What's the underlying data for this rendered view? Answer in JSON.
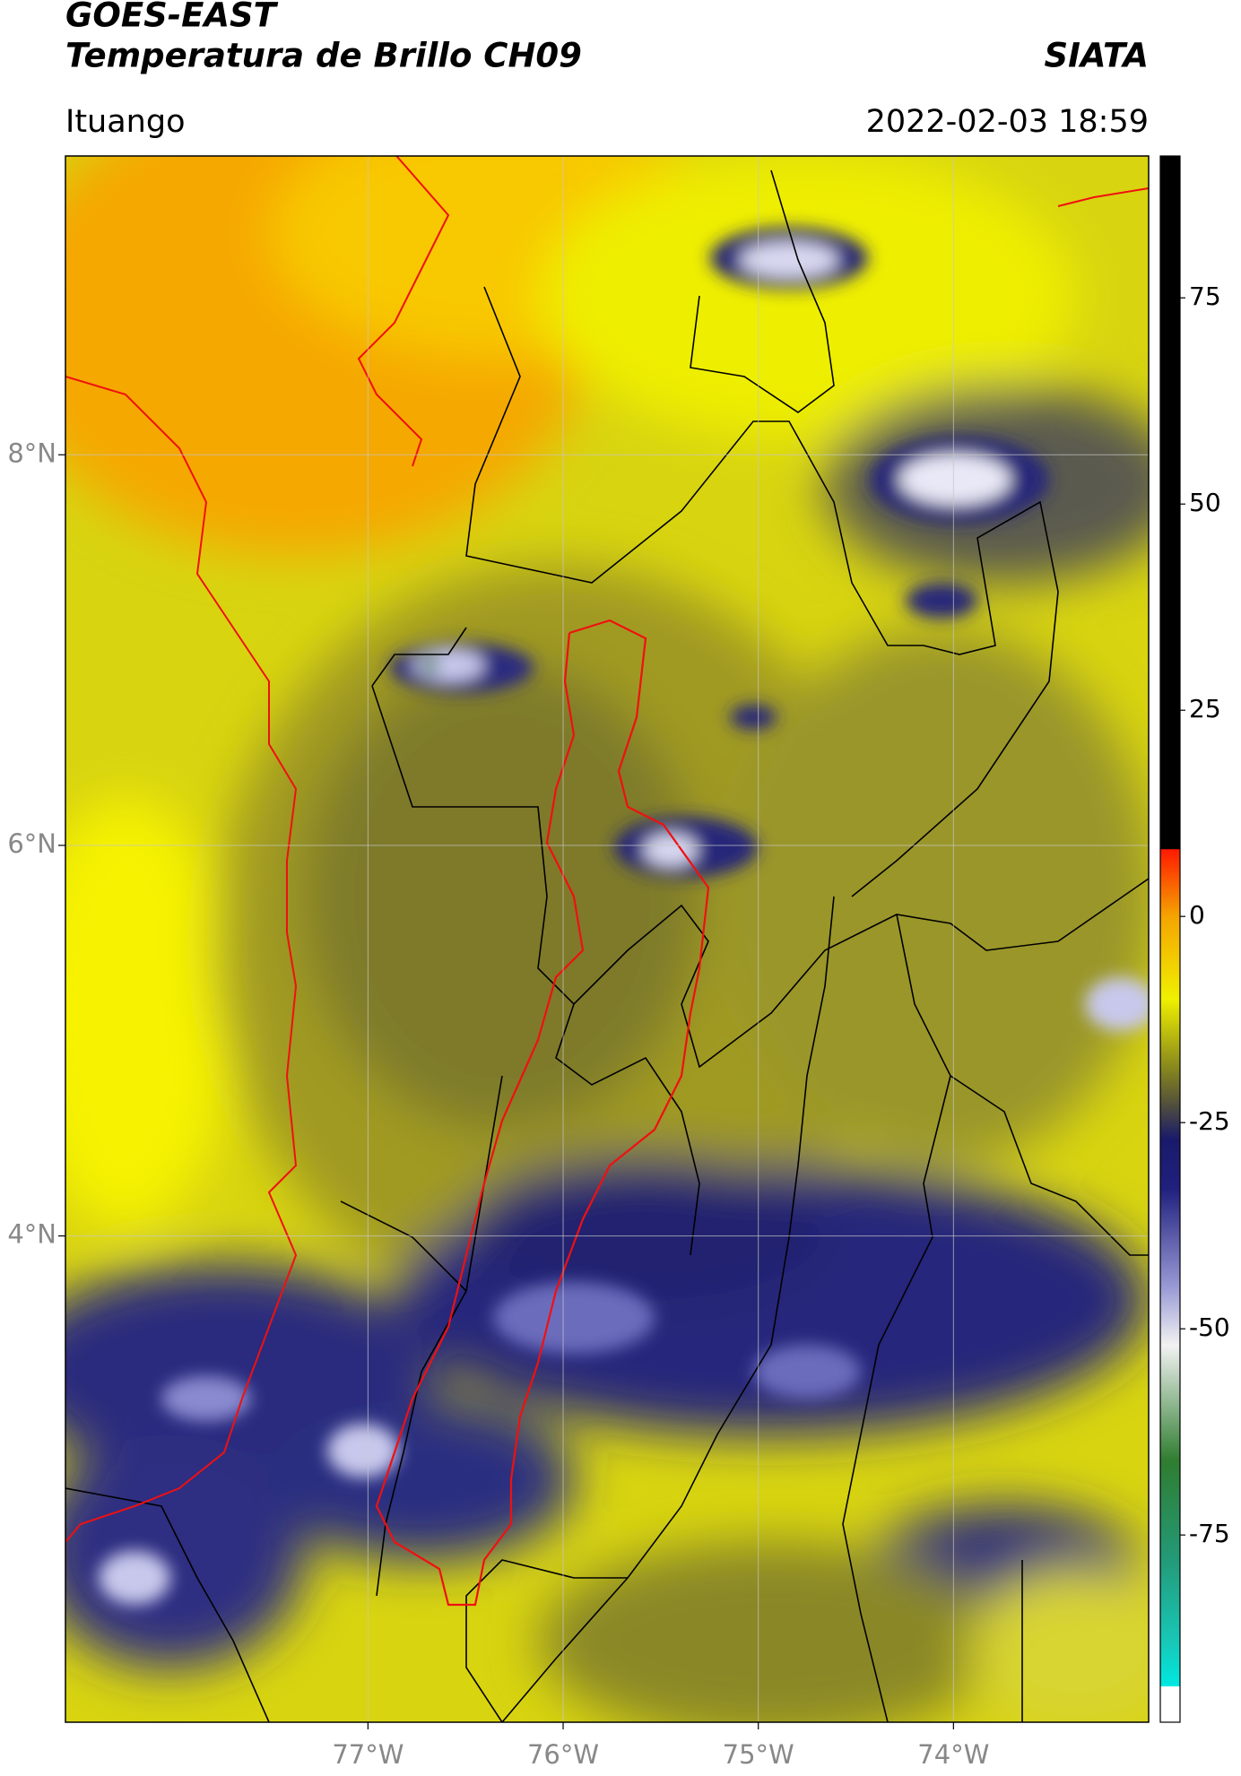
{
  "header": {
    "satellite": "GOES-EAST",
    "product": "Temperatura de Brillo CH09",
    "agency": "SIATA",
    "region": "Ituango",
    "timestamp": "2022-02-03 18:59"
  },
  "chart_data": {
    "type": "map",
    "xlim": [
      -78.55,
      -73
    ],
    "ylim": [
      1.51,
      9.53
    ],
    "xticks": [
      {
        "value": -77,
        "label": "77°W"
      },
      {
        "value": -76,
        "label": "76°W"
      },
      {
        "value": -75,
        "label": "75°W"
      },
      {
        "value": -74,
        "label": "74°W"
      }
    ],
    "yticks": [
      {
        "value": 4,
        "label": "4°N"
      },
      {
        "value": 6,
        "label": "6°N"
      },
      {
        "value": 8,
        "label": "8°N"
      }
    ],
    "grid": true,
    "colorbar": {
      "lim": [
        -97.7,
        92.2
      ],
      "ticks": [
        -75,
        -50,
        -25,
        0,
        25,
        50,
        75
      ],
      "stops": [
        {
          "value": -97.7,
          "color": "#ffffff"
        },
        {
          "value": -93.4,
          "color": "#ffffff"
        },
        {
          "value": -93.3,
          "color": "#00e8e0"
        },
        {
          "value": -88,
          "color": "#18c8b8"
        },
        {
          "value": -78,
          "color": "#239a78"
        },
        {
          "value": -66,
          "color": "#2f7d30"
        },
        {
          "value": -52,
          "color": "#f2f2f2"
        },
        {
          "value": -45,
          "color": "#9a9ad6"
        },
        {
          "value": -33,
          "color": "#20207e"
        },
        {
          "value": -27,
          "color": "#1a1a6a"
        },
        {
          "value": -22,
          "color": "#5c5a34"
        },
        {
          "value": -18,
          "color": "#8c8c1c"
        },
        {
          "value": -10,
          "color": "#f0f000"
        },
        {
          "value": 0,
          "color": "#f5a400"
        },
        {
          "value": 8.1,
          "color": "#ff1a00"
        },
        {
          "value": 8.2,
          "color": "#000000"
        },
        {
          "value": 92.2,
          "color": "#000000"
        }
      ]
    }
  }
}
